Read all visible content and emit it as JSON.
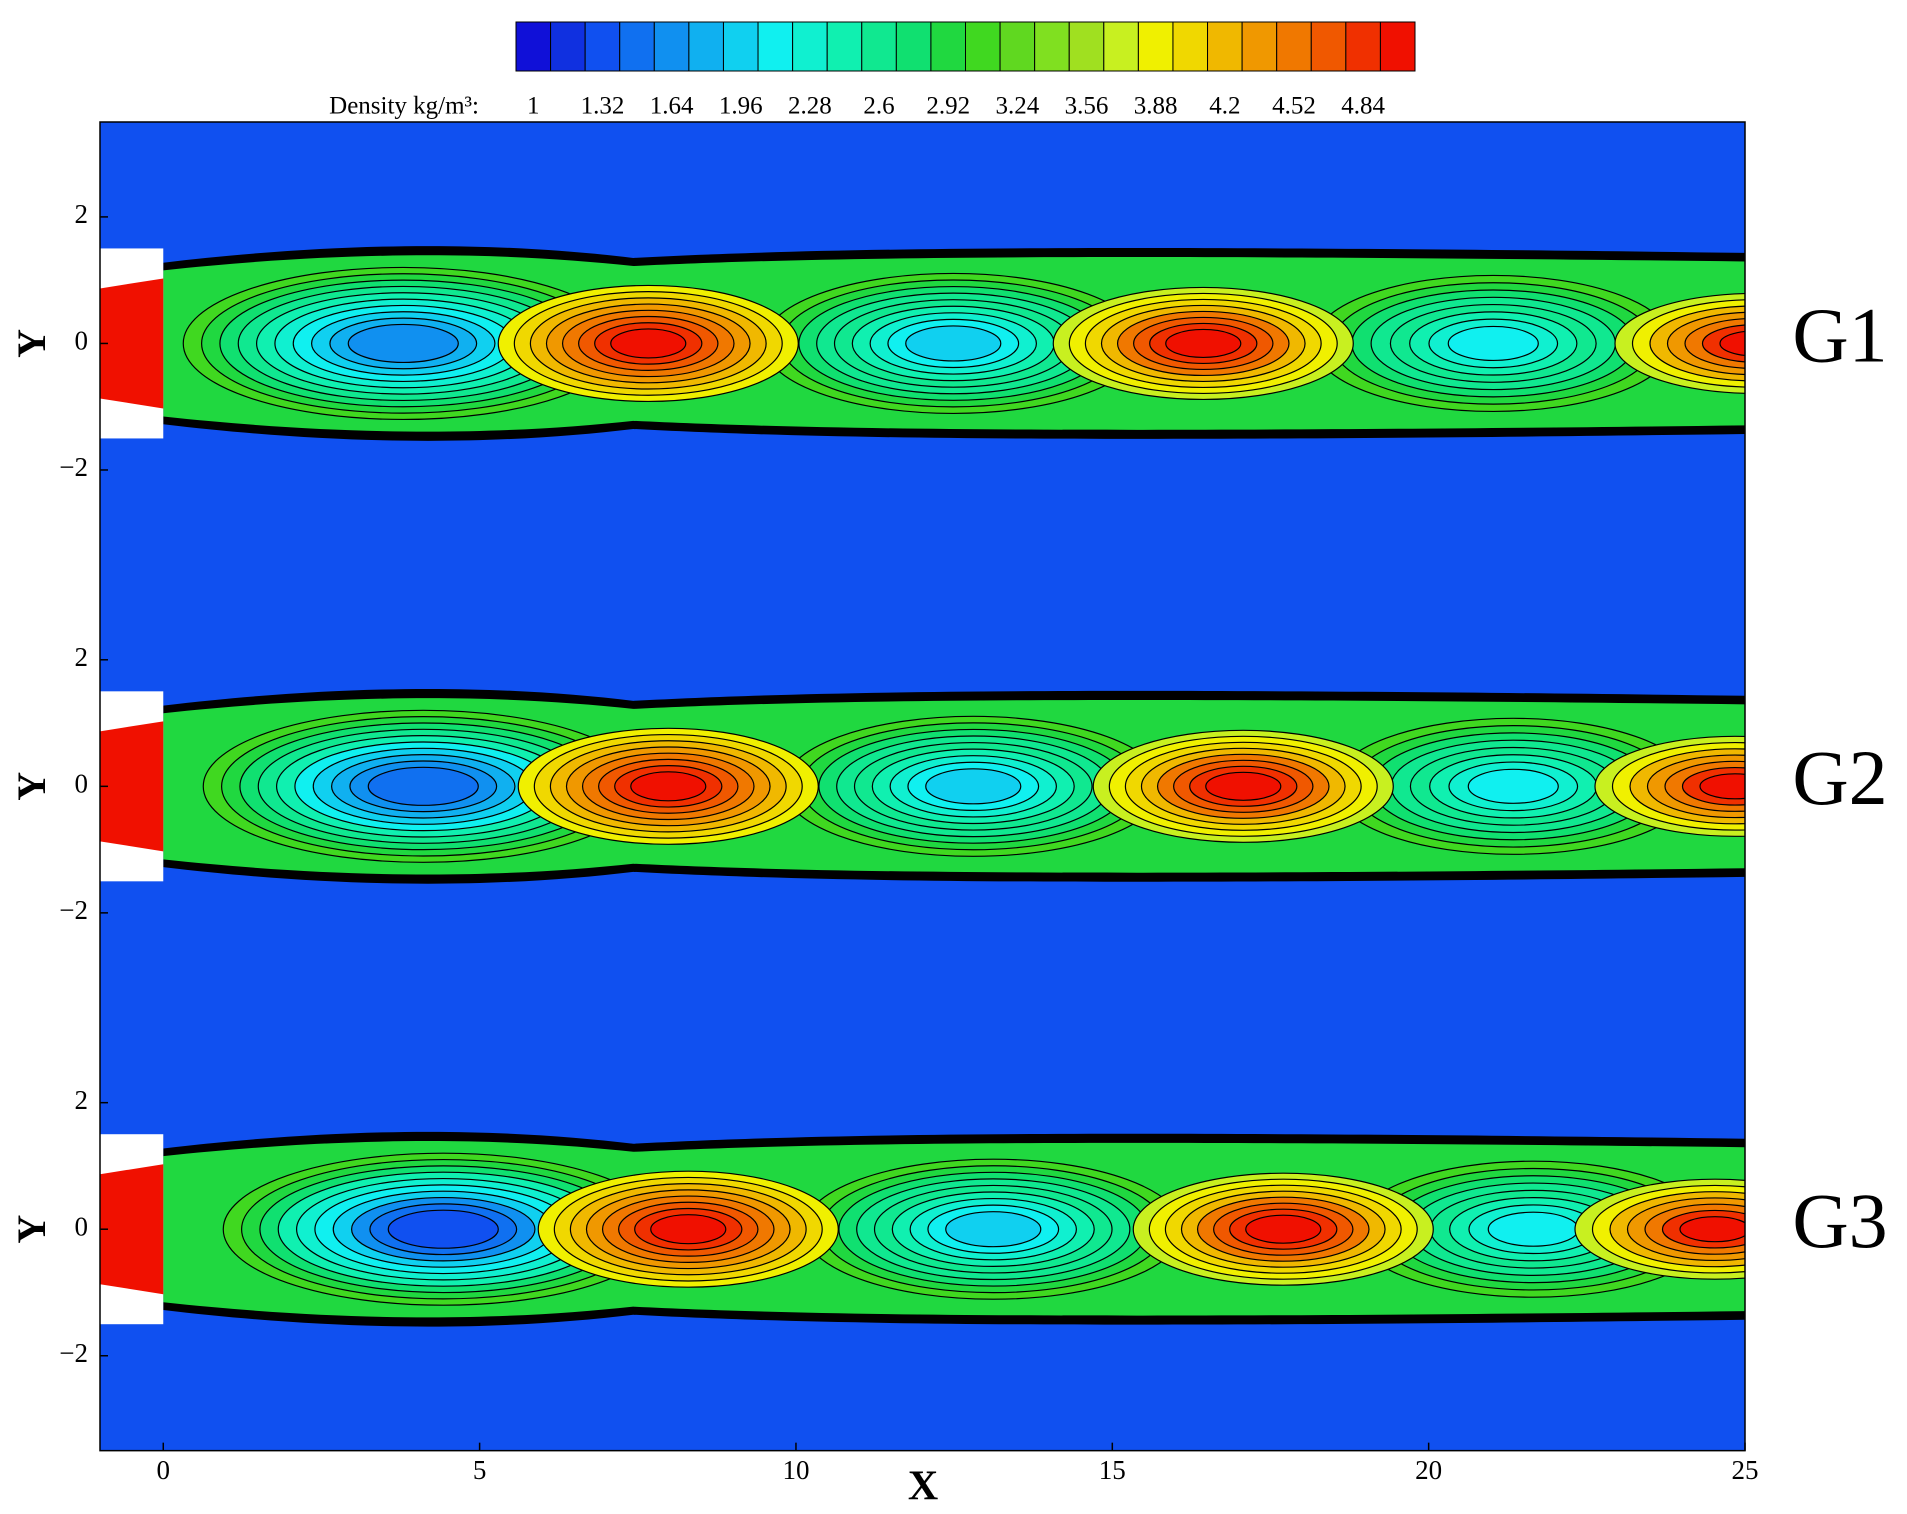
{
  "chart_data": {
    "type": "contour",
    "colorbar": {
      "title": "Density kg/m³:",
      "clim": [
        0.92,
        5.08
      ],
      "ticks": [
        1,
        1.32,
        1.64,
        1.96,
        2.28,
        2.6,
        2.92,
        3.24,
        3.56,
        3.88,
        4.2,
        4.52,
        4.84
      ],
      "colors": [
        "#1010d8",
        "#1030e0",
        "#1050f0",
        "#1070f0",
        "#1090f0",
        "#10b0f0",
        "#10d0f0",
        "#10f0f0",
        "#10f0d0",
        "#10f0b0",
        "#10e890",
        "#10e070",
        "#20d840",
        "#40d820",
        "#60d820",
        "#80e020",
        "#a0e020",
        "#c8f020",
        "#f0f000",
        "#f0d800",
        "#f0b800",
        "#f09800",
        "#f07800",
        "#f05800",
        "#f03000",
        "#f01000"
      ]
    },
    "xlabel": "X",
    "xlim": [
      -1,
      25
    ],
    "xticks": [
      0,
      5,
      10,
      15,
      20,
      25
    ],
    "panels": [
      {
        "label": "G1",
        "ylabel": "Y",
        "ylim": [
          -3.5,
          3.5
        ],
        "yticks": [
          {
            "value": -2,
            "label": "−2"
          },
          0,
          2
        ]
      },
      {
        "label": "G2",
        "ylabel": "Y",
        "ylim": [
          -3.5,
          3.5
        ],
        "yticks": [
          {
            "value": -2,
            "label": "−2"
          },
          0,
          2
        ]
      },
      {
        "label": "G3",
        "ylabel": "Y",
        "ylim": [
          -3.5,
          3.5
        ],
        "yticks": [
          {
            "value": -2,
            "label": "−2"
          },
          0,
          2
        ]
      }
    ]
  }
}
